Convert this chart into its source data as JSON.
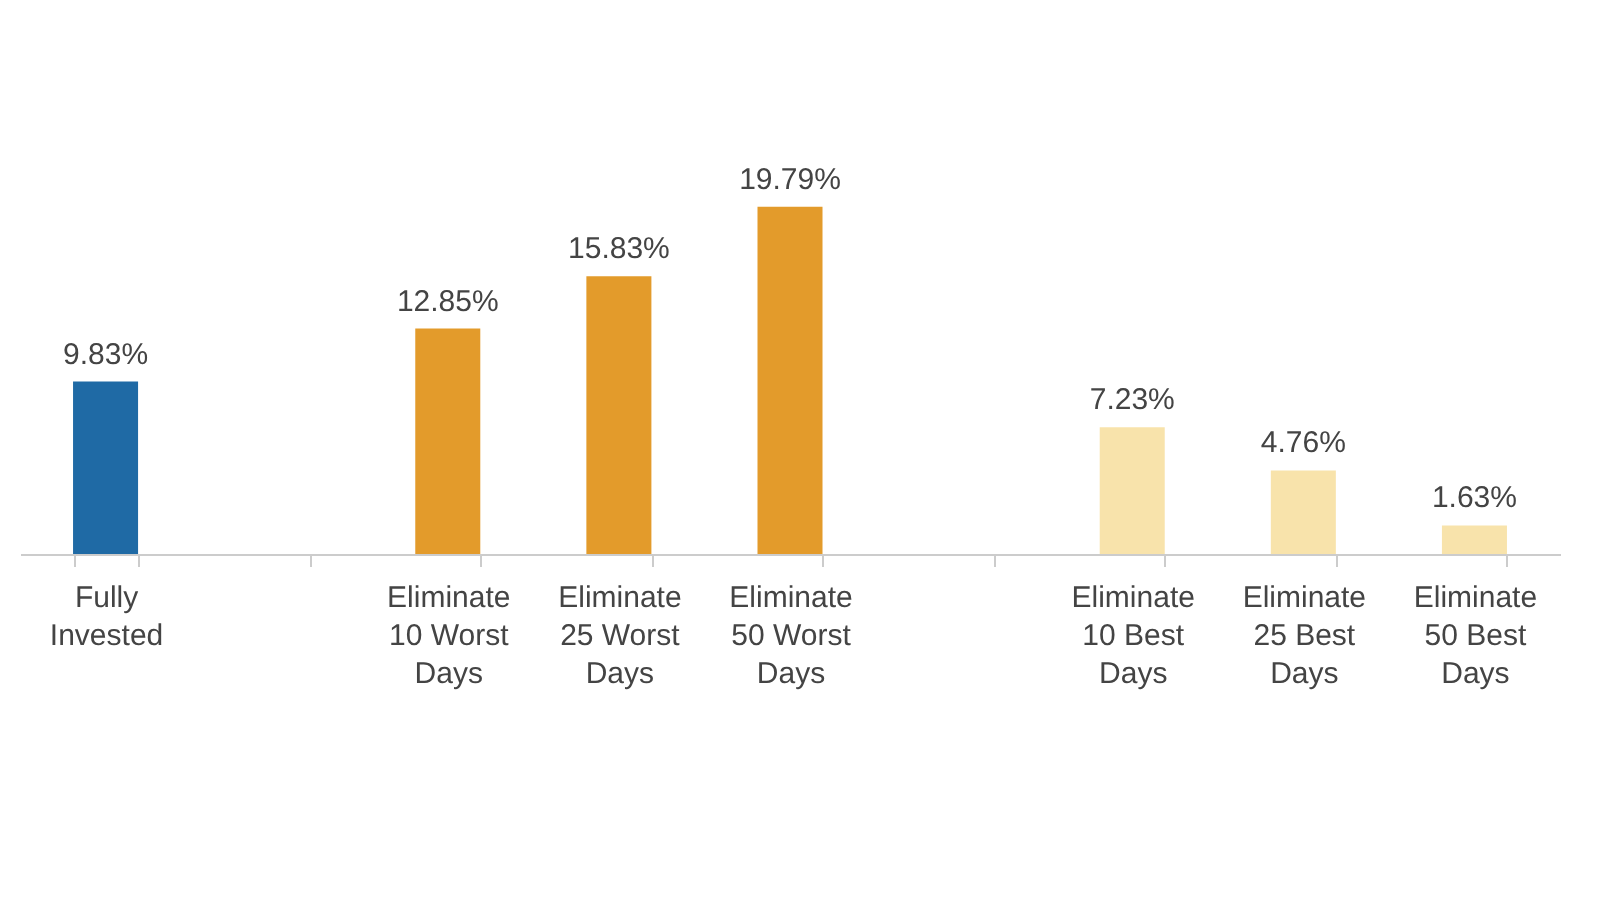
{
  "chart_data": {
    "type": "bar",
    "categories": [
      "Fully Invested",
      null,
      "Eliminate 10 Worst Days",
      "Eliminate 25 Worst Days",
      "Eliminate 50 Worst Days",
      null,
      "Eliminate 10 Best Days",
      "Eliminate 25 Best Days",
      "Eliminate 50 Best Days"
    ],
    "values": [
      9.83,
      null,
      12.85,
      15.83,
      19.79,
      null,
      7.23,
      4.76,
      1.63
    ],
    "value_labels": [
      "9.83%",
      null,
      "12.85%",
      "15.83%",
      "19.79%",
      null,
      "7.23%",
      "4.76%",
      "1.63%"
    ],
    "colors": [
      "#1f6aa5",
      null,
      "#e39b2b",
      "#e39b2b",
      "#e39b2b",
      null,
      "#f8e3ab",
      "#f8e3ab",
      "#f8e3ab"
    ],
    "tick_labels": "x"
  }
}
